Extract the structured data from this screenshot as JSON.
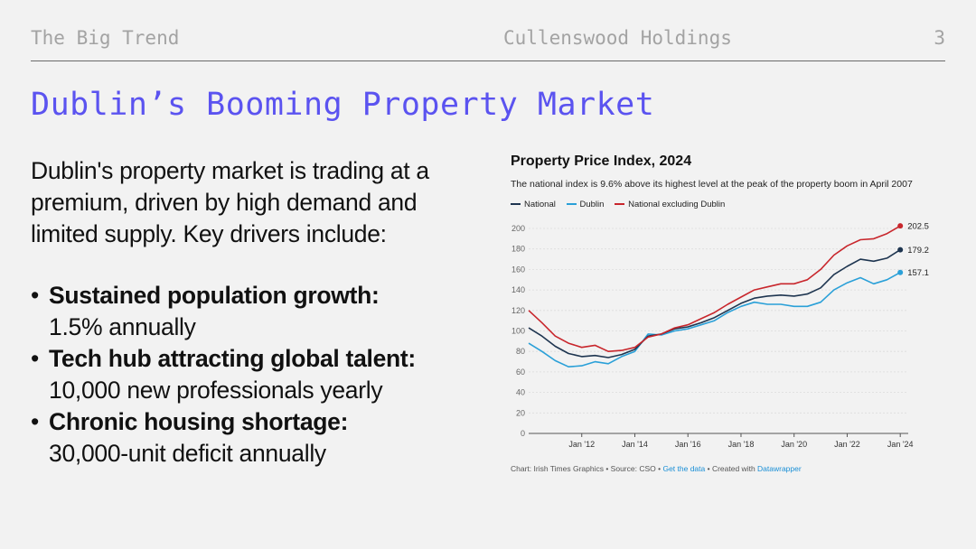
{
  "header": {
    "section": "The Big Trend",
    "company": "Cullenswood Holdings",
    "page_number": "3"
  },
  "slide": {
    "title": "Dublin’s Booming Property Market",
    "intro": "Dublin's property market is trading at a premium, driven by high demand and limited supply. Key drivers include:",
    "bullets": [
      {
        "bold": "Sustained population growth:",
        "detail": "1.5% annually"
      },
      {
        "bold": "Tech hub attracting global talent:",
        "detail": "10,000 new professionals yearly"
      },
      {
        "bold": "Chronic housing shortage:",
        "detail": "30,000-unit deficit annually"
      }
    ],
    "bullet_glyph": "•"
  },
  "chart_data": {
    "type": "line",
    "title": "Property Price Index, 2024",
    "subtitle": "The national index is 9.6% above its highest level at the peak of the property boom in April 2007",
    "xlabel": "",
    "ylabel": "",
    "ylim": [
      0,
      200
    ],
    "yticks": [
      0,
      20,
      40,
      60,
      80,
      100,
      120,
      140,
      160,
      180,
      200
    ],
    "xlim": [
      2010.0,
      2024.3
    ],
    "xticks": [
      {
        "value": 2012,
        "label": "Jan '12"
      },
      {
        "value": 2014,
        "label": "Jan '14"
      },
      {
        "value": 2016,
        "label": "Jan '16"
      },
      {
        "value": 2018,
        "label": "Jan '18"
      },
      {
        "value": 2020,
        "label": "Jan '20"
      },
      {
        "value": 2022,
        "label": "Jan '22"
      },
      {
        "value": 2024,
        "label": "Jan '24"
      }
    ],
    "grid": true,
    "legend_position": "top-left",
    "x": [
      2010.0,
      2010.5,
      2011.0,
      2011.5,
      2012.0,
      2012.5,
      2013.0,
      2013.5,
      2014.0,
      2014.5,
      2015.0,
      2015.5,
      2016.0,
      2016.5,
      2017.0,
      2017.5,
      2018.0,
      2018.5,
      2019.0,
      2019.5,
      2020.0,
      2020.5,
      2021.0,
      2021.5,
      2022.0,
      2022.5,
      2023.0,
      2023.5,
      2024.0
    ],
    "series": [
      {
        "name": "National",
        "color": "#1e3550",
        "values": [
          103,
          95,
          85,
          78,
          75,
          76,
          74,
          77,
          82,
          95,
          97,
          102,
          104,
          108,
          113,
          120,
          127,
          132,
          134,
          135,
          134,
          136,
          142,
          155,
          163,
          170,
          168,
          171,
          179.2
        ],
        "end_label": "179.2"
      },
      {
        "name": "Dublin",
        "color": "#2aa0d8",
        "values": [
          88,
          80,
          71,
          65,
          66,
          70,
          68,
          75,
          80,
          97,
          96,
          100,
          102,
          106,
          110,
          118,
          124,
          128,
          126,
          126,
          124,
          124,
          128,
          140,
          147,
          152,
          146,
          150,
          157.1
        ],
        "end_label": "157.1"
      },
      {
        "name": "National excluding Dublin",
        "color": "#c8262c",
        "values": [
          120,
          108,
          95,
          88,
          84,
          86,
          80,
          81,
          84,
          94,
          97,
          103,
          106,
          112,
          118,
          126,
          133,
          140,
          143,
          146,
          146,
          150,
          160,
          174,
          183,
          189,
          190,
          195,
          202.5
        ],
        "end_label": "202.5"
      }
    ],
    "source_prefix": "Chart: Irish Times Graphics • Source: CSO • ",
    "source_link": "Get the data",
    "source_mid": " • Created with ",
    "source_tool": "Datawrapper"
  }
}
